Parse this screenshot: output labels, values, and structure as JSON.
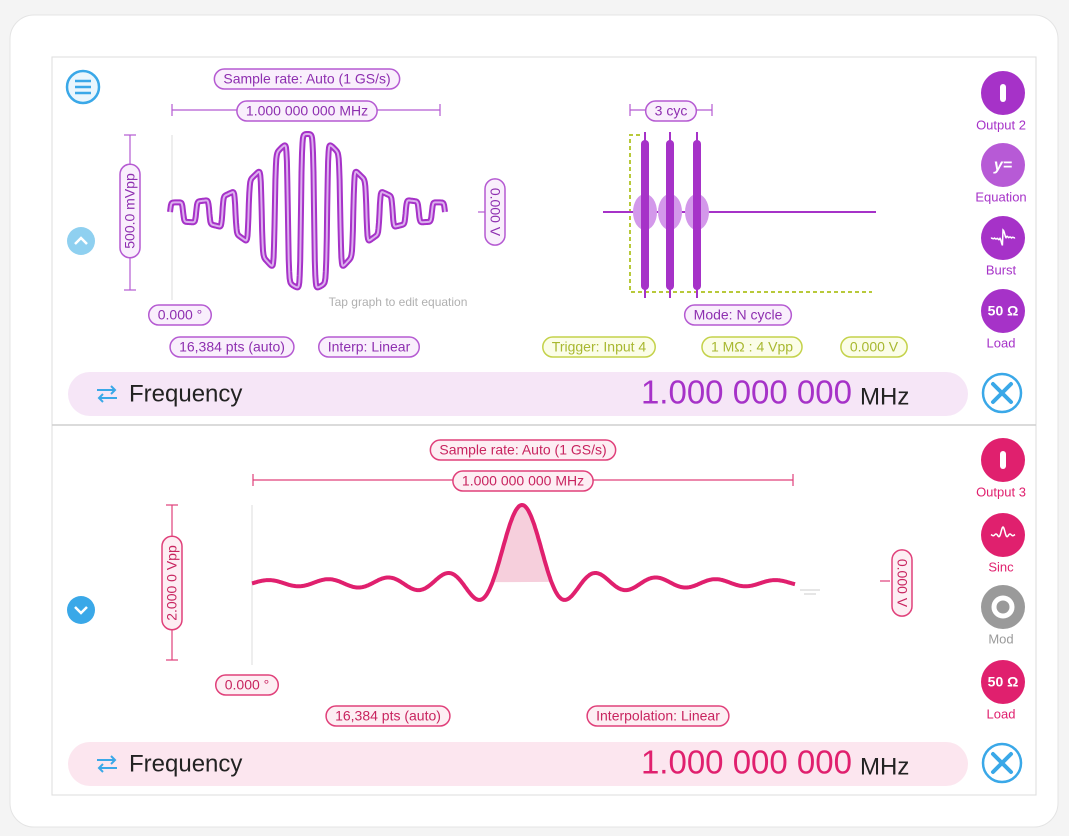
{
  "channels": [
    {
      "sample_rate": "Sample rate: Auto (1 GS/s)",
      "period": "1.000 000 000 MHz",
      "amplitude": "500.0 mVpp",
      "offset": "0.000 V",
      "phase": "0.000 °",
      "hint": "Tap graph to edit equation",
      "points": "16,384 pts (auto)",
      "interpolation": "Interp: Linear",
      "burst": {
        "cycles": "3 cyc",
        "mode": "Mode: N cycle",
        "trigger": "Trigger: Input 4",
        "impedance": "1 MΩ : 4 Vpp",
        "level": "0.000 V"
      },
      "buttons": [
        {
          "icon": "I",
          "label": "Output 2"
        },
        {
          "icon": "y=",
          "label": "Equation"
        },
        {
          "label": "Burst"
        },
        {
          "icon": "50 Ω",
          "label": "Load"
        }
      ],
      "parameter": {
        "name": "Frequency",
        "value": "1.000 000 000",
        "unit": "MHz"
      }
    },
    {
      "sample_rate": "Sample rate: Auto (1 GS/s)",
      "period": "1.000 000 000 MHz",
      "amplitude": "2.000 0 Vpp",
      "offset": "0.000 V",
      "phase": "0.000 °",
      "points": "16,384 pts (auto)",
      "interpolation": "Interpolation: Linear",
      "buttons": [
        {
          "icon": "I",
          "label": "Output 3"
        },
        {
          "label": "Sinc"
        },
        {
          "label": "Mod"
        },
        {
          "icon": "50 Ω",
          "label": "Load"
        }
      ],
      "parameter": {
        "name": "Frequency",
        "value": "1.000 000 000",
        "unit": "MHz"
      }
    }
  ]
}
